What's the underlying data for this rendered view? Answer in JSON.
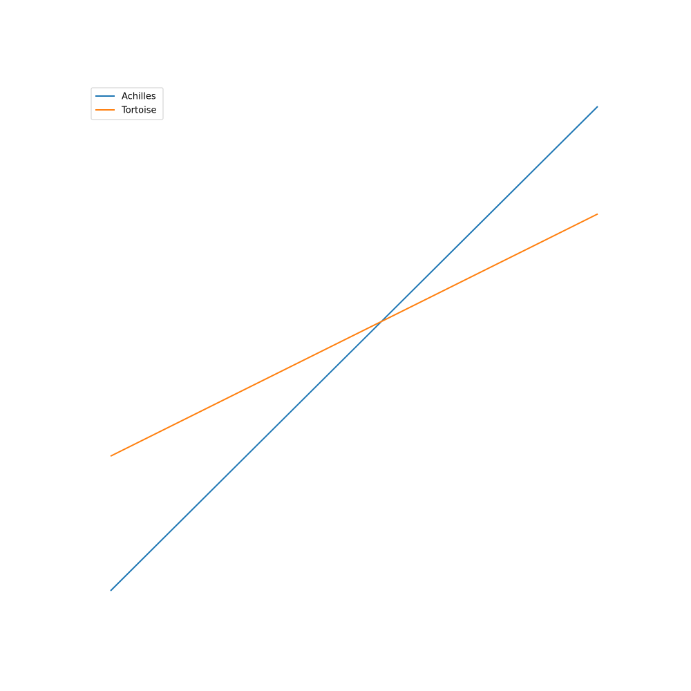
{
  "chart_data": {
    "type": "line",
    "title": "",
    "xlabel": "",
    "ylabel": "",
    "axes_visible": false,
    "grid": false,
    "xlim": [
      0,
      10
    ],
    "ylim": [
      0,
      10
    ],
    "legend_position": "top-left",
    "x": [
      0,
      10
    ],
    "series": [
      {
        "name": "Achilles",
        "values": [
          0,
          10
        ],
        "color": "#1f77b4"
      },
      {
        "name": "Tortoise",
        "values": [
          2.78,
          7.78
        ],
        "color": "#ff7f0e"
      }
    ]
  }
}
